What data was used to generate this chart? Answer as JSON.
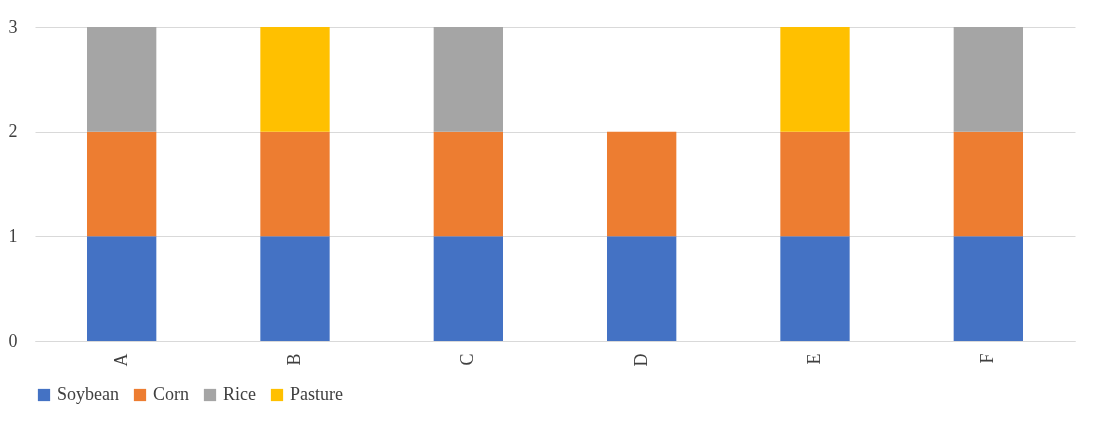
{
  "chart_data": {
    "type": "bar",
    "stacked": true,
    "categories": [
      "A",
      "B",
      "C",
      "D",
      "E",
      "F"
    ],
    "series": [
      {
        "name": "Soybean",
        "color": "#4472c4",
        "values": [
          1,
          1,
          1,
          1,
          1,
          1
        ]
      },
      {
        "name": "Corn",
        "color": "#ed7d31",
        "values": [
          1,
          1,
          1,
          1,
          1,
          1
        ]
      },
      {
        "name": "Rice",
        "color": "#a5a5a5",
        "values": [
          1,
          null,
          1,
          null,
          null,
          1
        ]
      },
      {
        "name": "Pasture",
        "color": "#ffc000",
        "values": [
          null,
          1,
          null,
          null,
          1,
          null
        ]
      }
    ],
    "ylim": [
      0,
      3
    ],
    "yticks": [
      0,
      1,
      2,
      3
    ],
    "grid": "y",
    "legend": "bottom"
  }
}
